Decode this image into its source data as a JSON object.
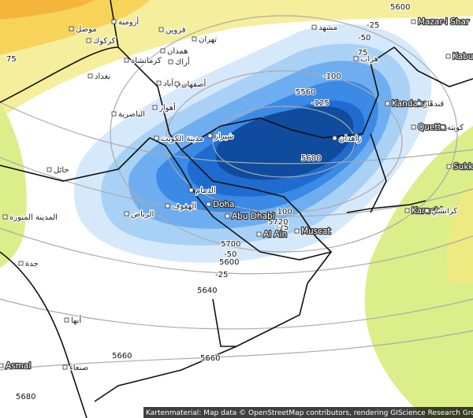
{
  "cities": [
    {
      "name": "Doha",
      "latin": true
    },
    {
      "name": "Abu Dhabi",
      "latin": true
    },
    {
      "name": "Al Ain",
      "latin": true
    },
    {
      "name": "Muscat",
      "latin": true
    },
    {
      "name": "Kandahar",
      "latin": true
    },
    {
      "name": "Quetta",
      "latin": true
    },
    {
      "name": "Karachi",
      "latin": true
    },
    {
      "name": "Kabul",
      "latin": true
    },
    {
      "name": "Sukk",
      "latin": true
    },
    {
      "name": "Mazar-i Shar",
      "latin": true
    },
    {
      "name": "Asmal",
      "latin": true
    },
    {
      "name": "الرياض",
      "latin": false
    },
    {
      "name": "الهفوف",
      "latin": false
    },
    {
      "name": "الدمام",
      "latin": false
    },
    {
      "name": "مدينة الكويت",
      "latin": false
    },
    {
      "name": "الناصرية",
      "latin": false
    },
    {
      "name": "أهواز",
      "latin": false
    },
    {
      "name": "بغداد",
      "latin": false
    },
    {
      "name": "كركوك",
      "latin": false
    },
    {
      "name": "موصل",
      "latin": false
    },
    {
      "name": "أرومية",
      "latin": false
    },
    {
      "name": "قزوين",
      "latin": false
    },
    {
      "name": "تهران",
      "latin": false
    },
    {
      "name": "همدان",
      "latin": false
    },
    {
      "name": "أراك",
      "latin": false
    },
    {
      "name": "كرمانشاه",
      "latin": false
    },
    {
      "name": "خرم آباد",
      "latin": false
    },
    {
      "name": "أصفهان",
      "latin": false
    },
    {
      "name": "شيراز",
      "latin": false
    },
    {
      "name": "زاهدان",
      "latin": false
    },
    {
      "name": "مشهد",
      "latin": false
    },
    {
      "name": "هرات",
      "latin": false
    },
    {
      "name": "قندهار",
      "latin": false
    },
    {
      "name": "كويته",
      "latin": false
    },
    {
      "name": "كراتشي",
      "latin": false
    },
    {
      "name": "حائل",
      "latin": false
    },
    {
      "name": "المدينة المنورة",
      "latin": false
    },
    {
      "name": "جدة",
      "latin": false
    },
    {
      "name": "أبها",
      "latin": false
    },
    {
      "name": "صنعاء",
      "latin": false
    }
  ],
  "contour_labels": [
    "-25",
    "-50",
    "-75",
    "-100",
    "-125",
    "5560",
    "5600",
    "5600",
    "75",
    "-50",
    "-25",
    "5600",
    "5700",
    "5640",
    "5660",
    "5660",
    "5680",
    "-100",
    "-75",
    "5720"
  ],
  "attribution": "Kartenmaterial: Map data © OpenStreetMap contributors, rendering GIScience Research Group @ Heidelberg Uni"
}
